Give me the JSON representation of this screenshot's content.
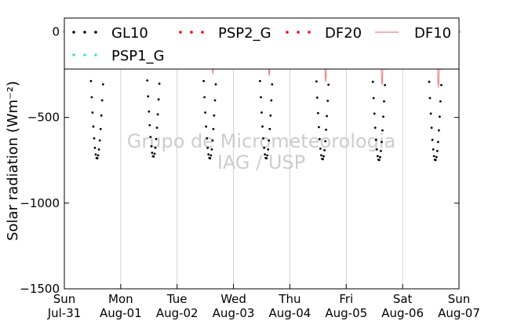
{
  "chart_data": {
    "type": "line",
    "title": "",
    "ylabel": "Solar radiation (Wm⁻²)",
    "xlabel": "",
    "ylim": [
      -1500,
      80
    ],
    "xlim": [
      0,
      7
    ],
    "yticks": [
      0,
      -500,
      -1000,
      -1500
    ],
    "ytick_labels": [
      "0",
      "−500",
      "−1000",
      "−1500"
    ],
    "xticks": [
      {
        "x": 0,
        "day": "Sun",
        "date": "Jul-31"
      },
      {
        "x": 1,
        "day": "Mon",
        "date": "Aug-01"
      },
      {
        "x": 2,
        "day": "Tue",
        "date": "Aug-02"
      },
      {
        "x": 3,
        "day": "Wed",
        "date": "Aug-03"
      },
      {
        "x": 4,
        "day": "Thu",
        "date": "Aug-04"
      },
      {
        "x": 5,
        "day": "Fri",
        "date": "Aug-05"
      },
      {
        "x": 6,
        "day": "Sat",
        "date": "Aug-06"
      },
      {
        "x": 7,
        "day": "Sun",
        "date": "Aug-07"
      }
    ],
    "grid": "vertical",
    "legend_placement": "top",
    "watermark": [
      "Grupo de Micrometeorologia",
      "IAG / USP"
    ],
    "series": [
      {
        "name": "GL10",
        "style": "dotted",
        "color": "#000000",
        "daily_peak": [
          -740,
          -730,
          -740,
          -740,
          -745,
          -750,
          -750
        ]
      },
      {
        "name": "PSP2_G",
        "style": "dotted",
        "color": "#ff0000",
        "daily_peak": [
          -45,
          -60,
          -50,
          -55,
          -60,
          -60,
          -65
        ]
      },
      {
        "name": "DF20",
        "style": "dotted",
        "color": "#ff0000",
        "daily_peak": [
          -55,
          -75,
          -65,
          -70,
          -75,
          -80,
          -90
        ]
      },
      {
        "name": "DF10",
        "style": "solid",
        "color": "#f08080",
        "daily_peak": [
          -215,
          -225,
          -255,
          -265,
          -300,
          -320,
          -335
        ]
      },
      {
        "name": "PSP1_G",
        "style": "dotted",
        "color": "#40e0d0",
        "daily_peak": [
          0,
          0,
          0,
          0,
          0,
          0,
          0
        ]
      }
    ],
    "legend": [
      {
        "name": "GL10",
        "style": "dotted",
        "color": "#000000"
      },
      {
        "name": "PSP2_G",
        "style": "dotted",
        "color": "#ff0000"
      },
      {
        "name": "DF20",
        "style": "dotted",
        "color": "#ff0000"
      },
      {
        "name": "DF10",
        "style": "solid",
        "color": "#f08080"
      },
      {
        "name": "PSP1_G",
        "style": "dotted",
        "color": "#40e0d0"
      }
    ]
  }
}
